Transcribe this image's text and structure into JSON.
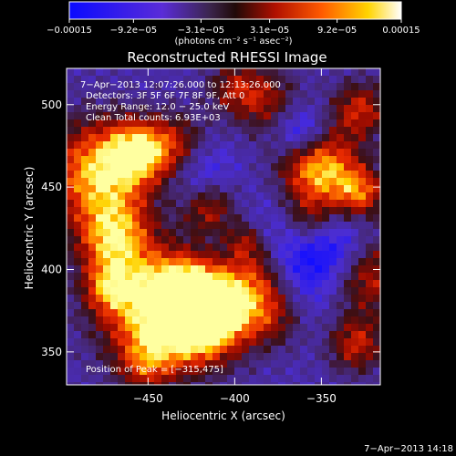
{
  "chart_data": {
    "type": "heatmap",
    "title": "Reconstructed RHESSI Image",
    "xlabel": "Heliocentric X (arcsec)",
    "ylabel": "Heliocentric Y (arcsec)",
    "xlim": [
      -497,
      -316
    ],
    "ylim": [
      330,
      522
    ],
    "x_ticks": [
      {
        "value": -450,
        "label": "−450"
      },
      {
        "value": -400,
        "label": "−400"
      },
      {
        "value": -350,
        "label": "−350"
      }
    ],
    "y_ticks": [
      {
        "value": 350,
        "label": "350"
      },
      {
        "value": 400,
        "label": "400"
      },
      {
        "value": 450,
        "label": "450"
      },
      {
        "value": 500,
        "label": "500"
      }
    ],
    "colorbar": {
      "range": [
        -0.00015,
        0.00015
      ],
      "ticks": [
        {
          "value": -0.00015,
          "label": "−0.00015"
        },
        {
          "value": -9.2e-05,
          "label": "−9.2e−05"
        },
        {
          "value": -3.1e-05,
          "label": "−3.1e−05"
        },
        {
          "value": 3.1e-05,
          "label": "3.1e−05"
        },
        {
          "value": 9.2e-05,
          "label": "9.2e−05"
        },
        {
          "value": 0.00015,
          "label": "0.00015"
        }
      ],
      "units": "(photons cm⁻² s⁻¹ asec⁻²)"
    },
    "annotations": [
      "7−Apr−2013 12:07:26.000 to 12:13:26.000",
      "Detectors: 3F 5F 6F 7F 8F 9F, Att 0",
      "Energy Range: 12.0 − 25.0 keV",
      "Clean     Total counts: 6.93E+03",
      "Position of Peak = [−315,475]"
    ],
    "footer": "7−Apr−2013 14:18"
  }
}
